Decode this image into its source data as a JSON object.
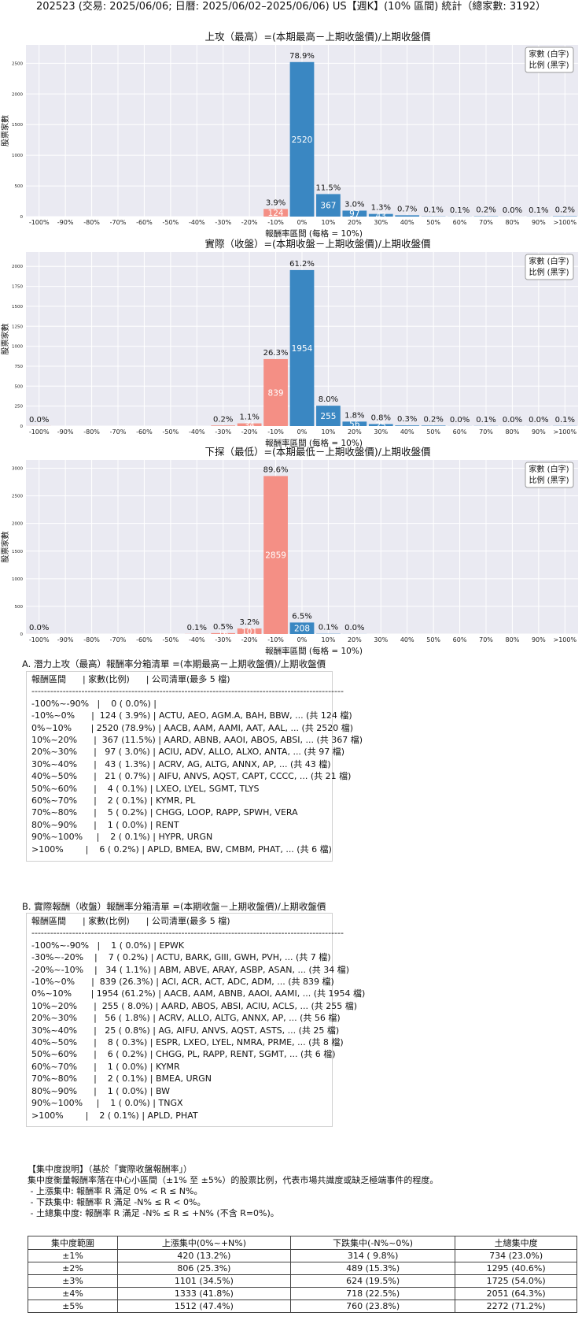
{
  "title": "202523 (交易: 2025/06/06; 日曆: 2025/06/02–2025/06/06) US【週K】(10% 區間) 統計（總家數: 3192）",
  "chart_data": [
    {
      "type": "bar",
      "title": "上攻（最高）=(本期最高－上期收盤價)/上期收盤價",
      "xlabel": "報酬率區間 (每格 = 10%)",
      "ylabel": "股票家數",
      "legend": [
        "家數 (白字)",
        "比例 (黑字)"
      ],
      "legend_position": "top-right",
      "categories": [
        "-100%",
        "-90%",
        "-80%",
        "-70%",
        "-60%",
        "-50%",
        "-40%",
        "-30%",
        "-20%",
        "-10%",
        "0%",
        "10%",
        "20%",
        "30%",
        "40%",
        "50%",
        "60%",
        "70%",
        "80%",
        "90%",
        ">100%"
      ],
      "counts": [
        0,
        0,
        0,
        0,
        0,
        0,
        0,
        0,
        0,
        124,
        2520,
        367,
        97,
        43,
        21,
        4,
        2,
        5,
        1,
        2,
        6
      ],
      "pct_labels": [
        "",
        "",
        "",
        "",
        "",
        "",
        "",
        "",
        "",
        "3.9%",
        "78.9%",
        "11.5%",
        "3.0%",
        "1.3%",
        "0.7%",
        "0.1%",
        "0.1%",
        "0.2%",
        "0.0%",
        "0.1%",
        "0.2%"
      ],
      "count_labels": [
        "",
        "",
        "",
        "",
        "",
        "",
        "",
        "",
        "",
        "124",
        "2520",
        "367",
        "97",
        "43",
        "",
        "",
        "",
        "",
        "",
        "",
        ""
      ],
      "yticks": [
        0,
        500,
        1000,
        1500,
        2000,
        2500
      ],
      "ylim": [
        0,
        2800
      ]
    },
    {
      "type": "bar",
      "title": "實際（收盤）=(本期收盤－上期收盤價)/上期收盤價",
      "xlabel": "報酬率區間 (每格 = 10%)",
      "ylabel": "股票家數",
      "legend": [
        "家數 (白字)",
        "比例 (黑字)"
      ],
      "legend_position": "top-right",
      "categories": [
        "-100%",
        "-90%",
        "-80%",
        "-70%",
        "-60%",
        "-50%",
        "-40%",
        "-30%",
        "-20%",
        "-10%",
        "0%",
        "10%",
        "20%",
        "30%",
        "40%",
        "50%",
        "60%",
        "70%",
        "80%",
        "90%",
        ">100%"
      ],
      "counts": [
        1,
        0,
        0,
        0,
        0,
        0,
        0,
        7,
        34,
        839,
        1954,
        255,
        56,
        25,
        8,
        6,
        1,
        2,
        1,
        1,
        2
      ],
      "pct_labels": [
        "0.0%",
        "",
        "",
        "",
        "",
        "",
        "",
        "0.2%",
        "1.1%",
        "26.3%",
        "61.2%",
        "8.0%",
        "1.8%",
        "0.8%",
        "0.3%",
        "0.2%",
        "0.0%",
        "0.1%",
        "0.0%",
        "0.0%",
        "0.1%"
      ],
      "count_labels": [
        "",
        "",
        "",
        "",
        "",
        "",
        "",
        "",
        "34",
        "839",
        "1954",
        "255",
        "56",
        "25",
        "",
        "",
        "",
        "",
        "",
        "",
        ""
      ],
      "yticks": [
        0,
        250,
        500,
        750,
        1000,
        1250,
        1500,
        1750,
        2000
      ],
      "ylim": [
        0,
        2180
      ]
    },
    {
      "type": "bar",
      "title": "下探（最低）=(本期最低－上期收盤價)/上期收盤價",
      "xlabel": "報酬率區間 (每格 = 10%)",
      "ylabel": "股票家數",
      "legend": [
        "家數 (白字)",
        "比例 (黑字)"
      ],
      "legend_position": "top-right",
      "categories": [
        "-100%",
        "-90%",
        "-80%",
        "-70%",
        "-60%",
        "-50%",
        "-40%",
        "-30%",
        "-20%",
        "-10%",
        "0%",
        "10%",
        "20%",
        "30%",
        "40%",
        "50%",
        "60%",
        "70%",
        "80%",
        "90%",
        ">100%"
      ],
      "counts": [
        1,
        0,
        0,
        0,
        0,
        0,
        2,
        16,
        101,
        2859,
        208,
        4,
        1,
        0,
        0,
        0,
        0,
        0,
        0,
        0,
        0
      ],
      "pct_labels": [
        "0.0%",
        "",
        "",
        "",
        "",
        "",
        "0.1%",
        "0.5%",
        "3.2%",
        "89.6%",
        "6.5%",
        "0.1%",
        "0.0%",
        "",
        "",
        "",
        "",
        "",
        "",
        "",
        ""
      ],
      "count_labels": [
        "",
        "",
        "",
        "",
        "",
        "",
        "",
        "16",
        "101",
        "2859",
        "208",
        "",
        "",
        "",
        "",
        "",
        "",
        "",
        "",
        "",
        ""
      ],
      "yticks": [
        0,
        500,
        1000,
        1500,
        2000,
        2500,
        3000
      ],
      "ylim": [
        0,
        3150
      ]
    }
  ],
  "colors": {
    "positive": "#3a87c2",
    "negative": "#f48f85",
    "plot_bg": "#eaeaf2",
    "grid": "#ffffff"
  },
  "sectionA": {
    "title": "A. 潛力上攻（最高）報酬率分箱清單 =(本期最高－上期收盤價)/上期收盤價",
    "lines": [
      "報酬區間      | 家數(比例)      | 公司清單(最多 5 檔)",
      "----------------------------------------------------------------------------------------------------",
      "-100%~-90%   |    0 ( 0.0%) |",
      "-10%~0%      |  124 ( 3.9%) | ACTU, AEO, AGM.A, BAH, BBW, ... (共 124 檔)",
      "0%~10%       | 2520 (78.9%) | AACB, AAM, AAMI, AAT, AAL, ... (共 2520 檔)",
      "10%~20%      |  367 (11.5%) | AARD, ABNB, AAOI, ABOS, ABSI, ... (共 367 檔)",
      "20%~30%      |   97 ( 3.0%) | ACIU, ADV, ALLO, ALXO, ANTA, ... (共 97 檔)",
      "30%~40%      |   43 ( 1.3%) | ACRV, AG, ALTG, ANNX, AP, ... (共 43 檔)",
      "40%~50%      |   21 ( 0.7%) | AIFU, ANVS, AQST, CAPT, CCCC, ... (共 21 檔)",
      "50%~60%      |    4 ( 0.1%) | LXEO, LYEL, SGMT, TLYS",
      "60%~70%      |    2 ( 0.1%) | KYMR, PL",
      "70%~80%      |    5 ( 0.2%) | CHGG, LOOP, RAPP, SPWH, VERA",
      "80%~90%      |    1 ( 0.0%) | RENT",
      "90%~100%     |    2 ( 0.1%) | HYPR, URGN",
      ">100%        |    6 ( 0.2%) | APLD, BMEA, BW, CMBM, PHAT, ... (共 6 檔)"
    ]
  },
  "sectionB": {
    "title": "B. 實際報酬（收盤）報酬率分箱清單 =(本期收盤－上期收盤價)/上期收盤價",
    "lines": [
      "報酬區間      | 家數(比例)      | 公司清單(最多 5 檔)",
      "----------------------------------------------------------------------------------------------------",
      "-100%~-90%   |    1 ( 0.0%) | EPWK",
      "-30%~-20%    |    7 ( 0.2%) | ACTU, BARK, GIII, GWH, PVH, ... (共 7 檔)",
      "-20%~-10%    |   34 ( 1.1%) | ABM, ABVE, ARAY, ASBP, ASAN, ... (共 34 檔)",
      "-10%~0%      |  839 (26.3%) | ACI, ACR, ACT, ADC, ADM, ... (共 839 檔)",
      "0%~10%       | 1954 (61.2%) | AACB, AAM, ABNB, AAOI, AAMI, ... (共 1954 檔)",
      "10%~20%      |  255 ( 8.0%) | AARD, ABOS, ABSI, ACIU, ACLS, ... (共 255 檔)",
      "20%~30%      |   56 ( 1.8%) | ACRV, ALLO, ALTG, ANNX, AP, ... (共 56 檔)",
      "30%~40%      |   25 ( 0.8%) | AG, AIFU, ANVS, AQST, ASTS, ... (共 25 檔)",
      "40%~50%      |    8 ( 0.3%) | ESPR, LXEO, LYEL, NMRA, PRME, ... (共 8 檔)",
      "50%~60%      |    6 ( 0.2%) | CHGG, PL, RAPP, RENT, SGMT, ... (共 6 檔)",
      "60%~70%      |    1 ( 0.0%) | KYMR",
      "70%~80%      |    2 ( 0.1%) | BMEA, URGN",
      "80%~90%      |    1 ( 0.0%) | BW",
      "90%~100%     |    1 ( 0.0%) | TNGX",
      ">100%        |    2 ( 0.1%) | APLD, PHAT"
    ]
  },
  "concentration": {
    "lines": [
      "【集中度說明】（基於「實際收盤報酬率」）",
      "集中度衡量報酬率落在中心小區間（±1% 至 ±5%）的股票比例，代表市場共識度或缺乏極端事件的程度。",
      " - 上漲集中: 報酬率 R 滿足 0% < R ≤ N%。",
      " - 下跌集中: 報酬率 R 滿足 -N% ≤ R < 0%。",
      " - 土總集中度: 報酬率 R 滿足 -N% ≤ R ≤ +N% (不含 R=0%)。"
    ],
    "headers": [
      "集中度範圍",
      "上漲集中(0%~+N%)",
      "下跌集中(-N%~0%)",
      "土總集中度"
    ],
    "rows": [
      [
        "±1%",
        "420 (13.2%)",
        "314 ( 9.8%)",
        "734 (23.0%)"
      ],
      [
        "±2%",
        "806 (25.3%)",
        "489 (15.3%)",
        "1295 (40.6%)"
      ],
      [
        "±3%",
        "1101 (34.5%)",
        "624 (19.5%)",
        "1725 (54.0%)"
      ],
      [
        "±4%",
        "1333 (41.8%)",
        "718 (22.5%)",
        "2051 (64.3%)"
      ],
      [
        "±5%",
        "1512 (47.4%)",
        "760 (23.8%)",
        "2272 (71.2%)"
      ]
    ]
  }
}
